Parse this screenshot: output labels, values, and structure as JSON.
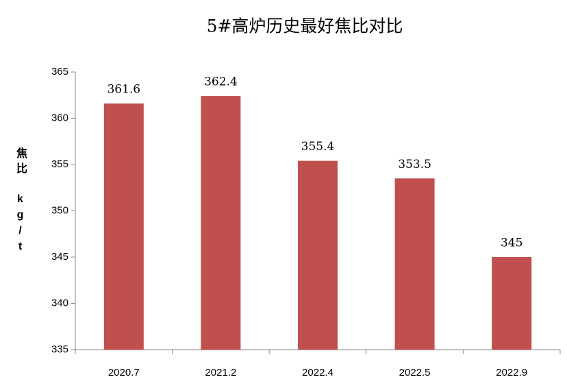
{
  "chart_data": {
    "type": "bar",
    "title": "5#高炉历史最好焦比对比",
    "y_label": "焦比 kg/t",
    "categories": [
      "2020.7",
      "2021.2",
      "2022.4",
      "2022.5",
      "2022.9"
    ],
    "values": [
      361.6,
      362.4,
      355.4,
      353.5,
      345
    ],
    "color": "#c0504d",
    "ylim": [
      335,
      365
    ],
    "yticks": [
      335,
      340,
      345,
      350,
      355,
      360,
      365
    ],
    "grid": false
  }
}
